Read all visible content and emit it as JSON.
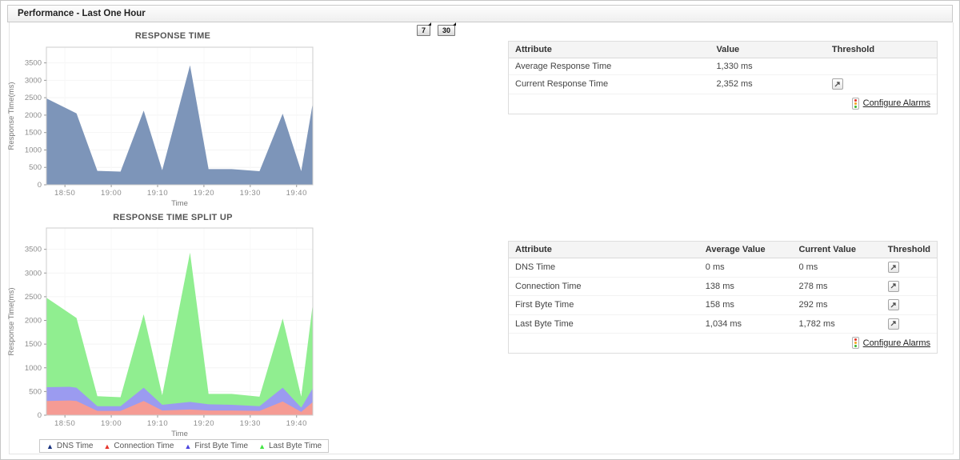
{
  "titlebar": {
    "title": "Performance - Last One Hour"
  },
  "toolbar": {
    "seven_day_label": "7",
    "thirty_day_label": "30"
  },
  "colors": {
    "chart1_fill": "#7D95B9",
    "plot_border": "#cccccc",
    "grid": "#f4f4f4",
    "axis_text": "#8d8d8d",
    "header_bg": "#f4f4f4"
  },
  "tables": [
    {
      "headers": [
        "Attribute",
        "Value",
        "Threshold"
      ],
      "rows": [
        {
          "cells": [
            "Average Response Time",
            "1,330 ms"
          ],
          "threshold_icon": false
        },
        {
          "cells": [
            "Current Response Time",
            "2,352 ms"
          ],
          "threshold_icon": true
        }
      ],
      "footer_link": "Configure Alarms"
    },
    {
      "headers": [
        "Attribute",
        "Average Value",
        "Current Value",
        "Threshold"
      ],
      "rows": [
        {
          "cells": [
            "DNS Time",
            "0 ms",
            "0 ms"
          ],
          "threshold_icon": true
        },
        {
          "cells": [
            "Connection Time",
            "138 ms",
            "278 ms"
          ],
          "threshold_icon": true
        },
        {
          "cells": [
            "First Byte Time",
            "158 ms",
            "292 ms"
          ],
          "threshold_icon": true
        },
        {
          "cells": [
            "Last Byte Time",
            "1,034 ms",
            "1,782 ms"
          ],
          "threshold_icon": true
        }
      ],
      "footer_link": "Configure Alarms"
    }
  ],
  "chart_data": [
    {
      "type": "area",
      "title": "RESPONSE TIME",
      "xlabel": "Time",
      "ylabel": "Response Time(ms)",
      "x": [
        0,
        5,
        6.5,
        11,
        16,
        21,
        25,
        31,
        35,
        40,
        46,
        51,
        55,
        57.5
      ],
      "xlim": [
        0,
        57.5
      ],
      "ylim": [
        0,
        3950
      ],
      "x_ticks": [
        {
          "pos": 4,
          "label": "18:50"
        },
        {
          "pos": 14,
          "label": "19:00"
        },
        {
          "pos": 24,
          "label": "19:10"
        },
        {
          "pos": 34,
          "label": "19:20"
        },
        {
          "pos": 44,
          "label": "19:30"
        },
        {
          "pos": 54,
          "label": "19:40"
        }
      ],
      "y_ticks": [
        0,
        500,
        1000,
        1500,
        2000,
        2500,
        3000,
        3500
      ],
      "series": [
        {
          "name": "Response Time",
          "fill": "#7D95B9",
          "values": [
            2480,
            2150,
            2050,
            400,
            380,
            2130,
            420,
            3430,
            450,
            450,
            390,
            2040,
            390,
            2352
          ]
        }
      ]
    },
    {
      "type": "stacked-area",
      "title": "RESPONSE TIME SPLIT UP",
      "xlabel": "Time",
      "ylabel": "Response Time(ms)",
      "x": [
        0,
        5,
        6.5,
        11,
        16,
        21,
        25,
        31,
        35,
        40,
        46,
        51,
        55,
        57.5
      ],
      "xlim": [
        0,
        57.5
      ],
      "ylim": [
        0,
        3950
      ],
      "x_ticks": [
        {
          "pos": 4,
          "label": "18:50"
        },
        {
          "pos": 14,
          "label": "19:00"
        },
        {
          "pos": 24,
          "label": "19:10"
        },
        {
          "pos": 34,
          "label": "19:20"
        },
        {
          "pos": 44,
          "label": "19:30"
        },
        {
          "pos": 54,
          "label": "19:40"
        }
      ],
      "y_ticks": [
        0,
        500,
        1000,
        1500,
        2000,
        2500,
        3000,
        3500
      ],
      "series": [
        {
          "name": "DNS Time",
          "fill": "#2B4B9B",
          "legend_color": "#16307E",
          "values": [
            0,
            0,
            0,
            0,
            0,
            0,
            0,
            0,
            0,
            0,
            0,
            0,
            0,
            0
          ]
        },
        {
          "name": "Connection Time",
          "fill": "#F59B94",
          "legend_color": "#E7342B",
          "values": [
            300,
            310,
            300,
            90,
            90,
            300,
            100,
            120,
            100,
            100,
            90,
            290,
            70,
            278
          ]
        },
        {
          "name": "First Byte Time",
          "fill": "#9B9BF0",
          "legend_color": "#4B44DE",
          "values": [
            290,
            290,
            280,
            100,
            100,
            280,
            120,
            160,
            130,
            120,
            100,
            290,
            90,
            292
          ]
        },
        {
          "name": "Last Byte Time",
          "fill": "#90EE90",
          "legend_color": "#44E544",
          "values": [
            1890,
            1550,
            1470,
            210,
            190,
            1550,
            200,
            3150,
            220,
            230,
            200,
            1460,
            230,
            1782
          ]
        }
      ]
    }
  ]
}
